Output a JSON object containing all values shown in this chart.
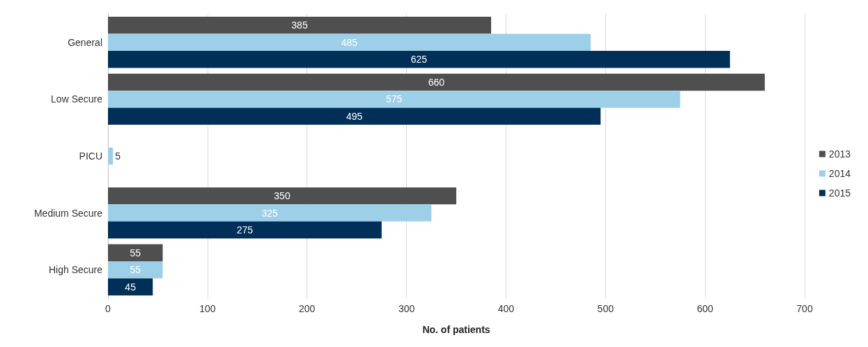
{
  "chart_data": {
    "type": "bar",
    "orientation": "horizontal",
    "xlabel": "No. of patients",
    "categories": [
      "General",
      "Low Secure",
      "PICU",
      "Medium Secure",
      "High Secure"
    ],
    "series": [
      {
        "name": "2013",
        "color": "#4f4f4f",
        "values": [
          385,
          660,
          null,
          350,
          55
        ]
      },
      {
        "name": "2014",
        "color": "#9dd0e8",
        "values": [
          485,
          575,
          5,
          325,
          55
        ]
      },
      {
        "name": "2015",
        "color": "#003057",
        "values": [
          625,
          495,
          null,
          275,
          45
        ]
      }
    ],
    "xlim": [
      0,
      700
    ],
    "xticks": [
      0,
      100,
      200,
      300,
      400,
      500,
      600,
      700
    ],
    "grid": "x",
    "legend": "right",
    "data_labels": true
  }
}
